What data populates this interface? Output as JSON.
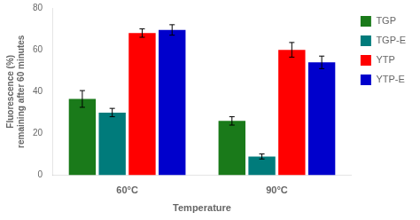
{
  "chart_data": {
    "type": "bar",
    "categories": [
      "60°C",
      "90°C"
    ],
    "series": [
      {
        "name": "TGP",
        "color": "#1a7a1a",
        "values": [
          36.5,
          26.0
        ],
        "errors": [
          4.0,
          2.0
        ]
      },
      {
        "name": "TGP-E",
        "color": "#007b7b",
        "values": [
          30.0,
          9.0
        ],
        "errors": [
          2.0,
          1.2
        ]
      },
      {
        "name": "YTP",
        "color": "#ff0000",
        "values": [
          68.0,
          60.0
        ],
        "errors": [
          2.0,
          3.5
        ]
      },
      {
        "name": "YTP-E",
        "color": "#0000cc",
        "values": [
          69.5,
          54.0
        ],
        "errors": [
          2.5,
          3.0
        ]
      }
    ],
    "xlabel": "Temperature",
    "ylabel": "Fluorescence (%)\nremaining after 60 minutes",
    "ylim": [
      0,
      80
    ],
    "yticks": [
      0,
      20,
      40,
      60,
      80
    ],
    "grid": false,
    "legend": "right"
  }
}
